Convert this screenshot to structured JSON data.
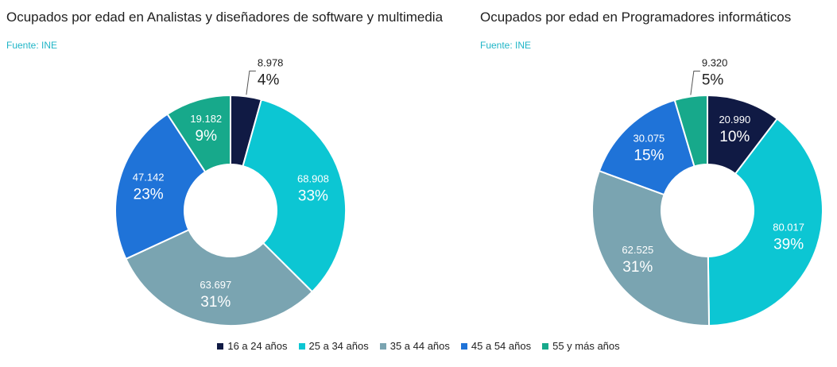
{
  "legend": {
    "items": [
      {
        "label": "16 a 24 años",
        "color": "#101a44"
      },
      {
        "label": "25 a 34 años",
        "color": "#0cc6d3"
      },
      {
        "label": "35 a 44 años",
        "color": "#7aa4b1"
      },
      {
        "label": "45 a 54 años",
        "color": "#1f73d8"
      },
      {
        "label": "55 y más años",
        "color": "#17a98b"
      }
    ]
  },
  "chart_data": [
    {
      "type": "donut",
      "title": "Ocupados por edad en Analistas y diseñadores de software y multimedia",
      "source": "Fuente: INE",
      "categories": [
        "16 a 24 años",
        "25 a 34 años",
        "35 a 44 años",
        "45 a 54 años",
        "55 y más años"
      ],
      "values": [
        8978,
        68908,
        63697,
        47142,
        19182
      ],
      "value_labels": [
        "8.978",
        "68.908",
        "63.697",
        "47.142",
        "19.182"
      ],
      "percent_labels": [
        "4%",
        "33%",
        "31%",
        "23%",
        "9%"
      ],
      "colors": [
        "#101a44",
        "#0cc6d3",
        "#7aa4b1",
        "#1f73d8",
        "#17a98b"
      ]
    },
    {
      "type": "donut",
      "title": "Ocupados por edad en Programadores informáticos",
      "source": "Fuente: INE",
      "categories": [
        "16 a 24 años",
        "25 a 34 años",
        "35 a 44 años",
        "45 a 54 años",
        "55 y más años"
      ],
      "values": [
        20990,
        80017,
        62525,
        30075,
        9320
      ],
      "value_labels": [
        "20.990",
        "80.017",
        "62.525",
        "30.075",
        "9.320"
      ],
      "percent_labels": [
        "10%",
        "39%",
        "31%",
        "15%",
        "5%"
      ],
      "colors": [
        "#101a44",
        "#0cc6d3",
        "#7aa4b1",
        "#1f73d8",
        "#17a98b"
      ]
    }
  ]
}
